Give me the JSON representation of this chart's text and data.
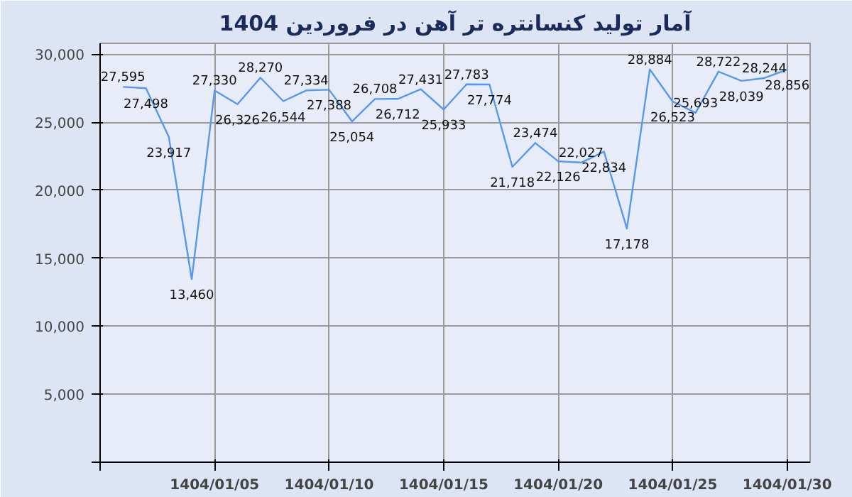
{
  "chart_data": {
    "type": "line",
    "title": "آمار تولید کنسانتره تر آهن در فروردین 1404",
    "categories": [
      null,
      null,
      null,
      null,
      "1404/01/05",
      null,
      null,
      null,
      null,
      "1404/01/10",
      null,
      null,
      null,
      null,
      "1404/01/15",
      null,
      null,
      null,
      null,
      "1404/01/20",
      null,
      null,
      null,
      null,
      "1404/01/25",
      null,
      null,
      null,
      null,
      "1404/01/30"
    ],
    "series": [
      {
        "color": "#5599ee",
        "values": [
          27595,
          27498,
          23917,
          13460,
          27330,
          26326,
          28270,
          26544,
          27334,
          27388,
          25054,
          26708,
          26712,
          27431,
          25933,
          27783,
          27774,
          21718,
          23474,
          22126,
          22027,
          22834,
          17178,
          28884,
          26523,
          25693,
          28722,
          28039,
          28244,
          28856
        ],
        "value_labels": [
          "27,595",
          "27,498",
          "23,917",
          "13,460",
          "27,330",
          "26,326",
          "28,270",
          "26,544",
          "27,334",
          "27,388",
          "25,054",
          "26,708",
          "26,712",
          "27,431",
          "25,933",
          "27,783",
          "27,774",
          "21,718",
          "23,474",
          "22,126",
          "22,027",
          "22,834",
          "17,178",
          "28,884",
          "26,523",
          "25,693",
          "28,722",
          "28,039",
          "28,244",
          "28,856"
        ]
      }
    ],
    "ylim": [
      0,
      30800
    ],
    "yticks": [
      {
        "value": 0,
        "label": null
      },
      {
        "value": 5000,
        "label": "5,000"
      },
      {
        "value": 10000,
        "label": "10,000"
      },
      {
        "value": 15000,
        "label": "15,000"
      },
      {
        "value": 20000,
        "label": "20,000"
      },
      {
        "value": 25000,
        "label": "25,000"
      },
      {
        "value": 30000,
        "label": "30,000"
      }
    ],
    "grid": true,
    "marker": "none",
    "line_style": "solid"
  }
}
